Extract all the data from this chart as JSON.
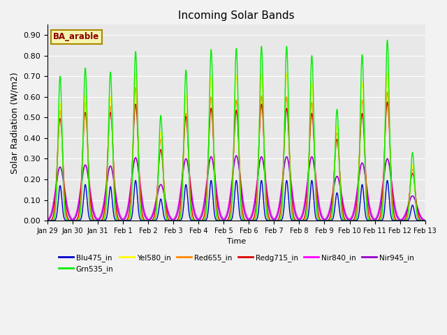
{
  "title": "Incoming Solar Bands",
  "xlabel": "Time",
  "ylabel": "Solar Radiation (W/m2)",
  "annotation": "BA_arable",
  "ylim": [
    0.0,
    0.95
  ],
  "yticks": [
    0.0,
    0.1,
    0.2,
    0.3,
    0.4,
    0.5,
    0.6,
    0.7,
    0.8,
    0.9
  ],
  "xtick_labels": [
    "Jan 29",
    "Jan 30",
    "Jan 31",
    "Feb 1",
    "Feb 2",
    "Feb 3",
    "Feb 4",
    "Feb 5",
    "Feb 6",
    "Feb 7",
    "Feb 8",
    "Feb 9",
    "Feb 10",
    "Feb 11",
    "Feb 12",
    "Feb 13"
  ],
  "colors": {
    "Blu475_in": "#0000cc",
    "Grn535_in": "#00ee00",
    "Yel580_in": "#ffff00",
    "Red655_in": "#ff8800",
    "Redg715_in": "#dd0000",
    "Nir840_in": "#ff00ff",
    "Nir945_in": "#9900cc"
  },
  "background_color": "#e8e8e8",
  "fig_facecolor": "#f2f2f2",
  "peak_heights": {
    "Grn535_in": [
      0.7,
      0.74,
      0.72,
      0.82,
      0.51,
      0.73,
      0.83,
      0.835,
      0.845,
      0.845,
      0.8,
      0.54,
      0.805,
      0.875,
      0.33
    ],
    "Yel580_in": [
      0.57,
      0.61,
      0.6,
      0.71,
      0.43,
      0.61,
      0.7,
      0.705,
      0.715,
      0.715,
      0.67,
      0.46,
      0.67,
      0.72,
      0.27
    ],
    "Red655_in": [
      0.535,
      0.575,
      0.555,
      0.645,
      0.395,
      0.52,
      0.6,
      0.585,
      0.605,
      0.6,
      0.575,
      0.425,
      0.585,
      0.625,
      0.25
    ],
    "Redg715_in": [
      0.495,
      0.525,
      0.525,
      0.565,
      0.345,
      0.505,
      0.545,
      0.535,
      0.565,
      0.545,
      0.52,
      0.395,
      0.52,
      0.575,
      0.23
    ],
    "Nir840_in": [
      0.26,
      0.27,
      0.265,
      0.305,
      0.175,
      0.3,
      0.31,
      0.315,
      0.31,
      0.31,
      0.31,
      0.215,
      0.28,
      0.3,
      0.12
    ],
    "Nir945_in": [
      0.26,
      0.27,
      0.265,
      0.305,
      0.175,
      0.3,
      0.31,
      0.315,
      0.31,
      0.31,
      0.31,
      0.215,
      0.28,
      0.3,
      0.12
    ],
    "Blu475_in": [
      0.17,
      0.175,
      0.165,
      0.195,
      0.105,
      0.175,
      0.195,
      0.195,
      0.195,
      0.195,
      0.195,
      0.135,
      0.175,
      0.195,
      0.075
    ]
  },
  "peak_widths": {
    "Nir840_in": 0.18,
    "Nir945_in": 0.16,
    "Grn535_in": 0.08,
    "Yel580_in": 0.09,
    "Red655_in": 0.1,
    "Redg715_in": 0.11,
    "Blu475_in": 0.07
  },
  "legend_order": [
    "Blu475_in",
    "Grn535_in",
    "Yel580_in",
    "Red655_in",
    "Redg715_in",
    "Nir840_in",
    "Nir945_in"
  ],
  "plot_order": [
    "Nir840_in",
    "Nir945_in",
    "Red655_in",
    "Redg715_in",
    "Yel580_in",
    "Grn535_in",
    "Blu475_in"
  ]
}
